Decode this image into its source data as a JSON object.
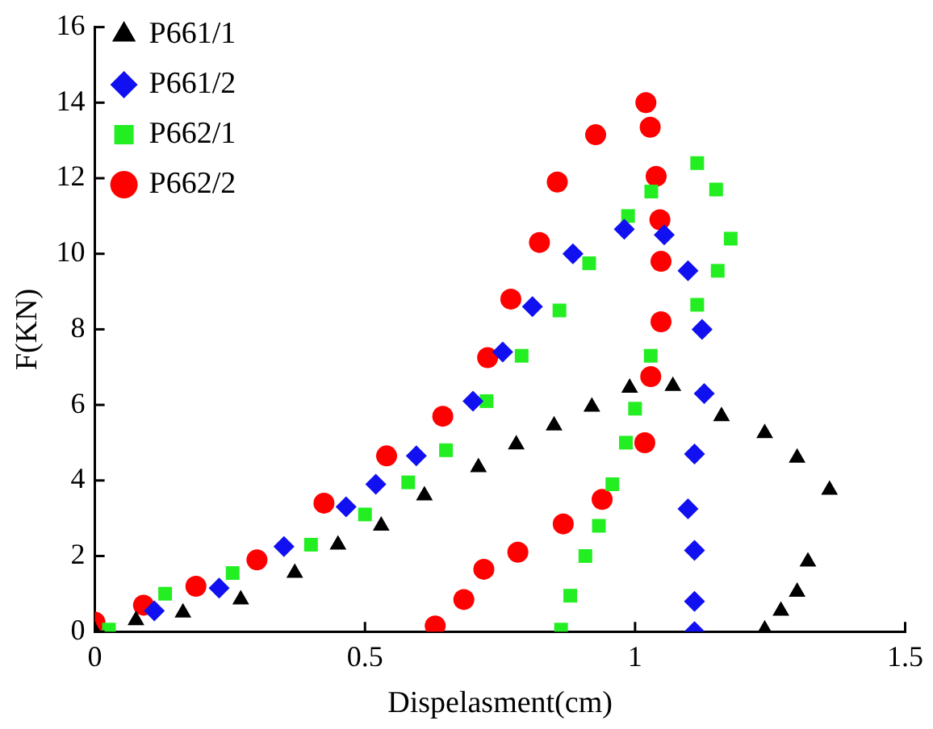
{
  "chart_data": {
    "type": "scatter",
    "xlabel": "Dispelasment(cm)",
    "ylabel": "F(KN)",
    "xlim": [
      0,
      1.5
    ],
    "xticks": [
      0,
      0.5,
      1,
      1.5
    ],
    "ylim": [
      0,
      16
    ],
    "yticks": [
      0,
      2,
      4,
      6,
      8,
      10,
      12,
      14,
      16
    ],
    "grid": false,
    "legend": "top left",
    "series": [
      {
        "name": "P661/1",
        "color": "#000000",
        "marker": "triangle",
        "x": [
          0,
          0.076,
          0.163,
          0.27,
          0.37,
          0.45,
          0.53,
          0.61,
          0.71,
          0.78,
          0.85,
          0.92,
          0.99,
          1.07,
          1.16,
          1.24,
          1.3,
          1.36,
          1.32,
          1.3,
          1.27,
          1.24
        ],
        "values": [
          0,
          0.3,
          0.5,
          0.85,
          1.55,
          2.3,
          2.8,
          3.6,
          4.35,
          4.95,
          5.45,
          5.95,
          6.45,
          6.5,
          5.7,
          5.25,
          4.6,
          3.75,
          1.85,
          1.05,
          0.55,
          0.05
        ]
      },
      {
        "name": "P661/2",
        "color": "#1010f0",
        "marker": "diamond",
        "x": [
          0.11,
          0.23,
          0.35,
          0.465,
          0.52,
          0.595,
          0.7,
          0.755,
          0.81,
          0.885,
          0.98,
          1.054,
          1.098,
          1.124,
          1.128,
          1.11,
          1.098,
          1.11,
          1.11,
          1.11
        ],
        "values": [
          0.55,
          1.15,
          2.25,
          3.3,
          3.9,
          4.65,
          6.1,
          7.4,
          8.6,
          10,
          10.65,
          10.5,
          9.55,
          8,
          6.3,
          4.7,
          3.25,
          2.15,
          0.8,
          0
        ]
      },
      {
        "name": "P662/1",
        "color": "#22ee22",
        "marker": "square",
        "x": [
          0.026,
          0.13,
          0.255,
          0.4,
          0.5,
          0.58,
          0.65,
          0.725,
          0.79,
          0.86,
          0.915,
          0.987,
          1.03,
          1.115,
          1.15,
          1.177,
          1.153,
          1.115,
          1.029,
          1,
          0.983,
          0.958,
          0.933,
          0.908,
          0.88,
          0.863
        ],
        "values": [
          0.05,
          1,
          1.55,
          2.3,
          3.1,
          3.95,
          4.8,
          6.1,
          7.3,
          8.5,
          9.75,
          11,
          11.65,
          12.4,
          11.7,
          10.4,
          9.55,
          8.65,
          7.3,
          5.9,
          5,
          3.9,
          2.8,
          2,
          0.95,
          0.05
        ]
      },
      {
        "name": "P662/2",
        "color": "#ff0000",
        "marker": "circle",
        "x": [
          0,
          0.09,
          0.187,
          0.3,
          0.424,
          0.54,
          0.644,
          0.727,
          0.77,
          0.823,
          0.856,
          0.927,
          1.02,
          1.028,
          1.039,
          1.046,
          1.048,
          1.048,
          1.029,
          1.018,
          0.939,
          0.867,
          0.783,
          0.72,
          0.683,
          0.63
        ],
        "values": [
          0.25,
          0.7,
          1.2,
          1.9,
          3.4,
          4.65,
          5.7,
          7.25,
          8.8,
          10.3,
          11.9,
          13.15,
          14,
          13.35,
          12.05,
          10.9,
          9.8,
          8.2,
          6.75,
          5,
          3.5,
          2.85,
          2.1,
          1.65,
          0.85,
          0.15
        ]
      }
    ]
  }
}
